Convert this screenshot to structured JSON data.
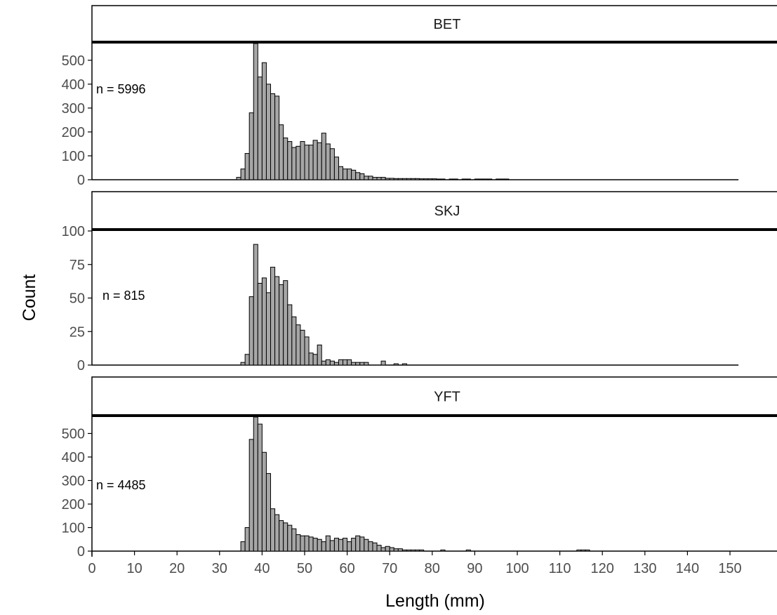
{
  "chart_data": {
    "type": "bar",
    "subtype": "histogram",
    "xlabel": "Length (mm)",
    "ylabel": "Count",
    "xlim": [
      0,
      152
    ],
    "x_ticks": [
      0,
      10,
      20,
      30,
      40,
      50,
      60,
      70,
      80,
      90,
      100,
      110,
      120,
      130,
      140,
      150
    ],
    "bin_width": 1,
    "grid": false,
    "legend": "none",
    "colors": {
      "bar_fill": "#a6a6a6",
      "bar_stroke": "#000000",
      "axis": "#000000"
    },
    "panels": [
      {
        "strip": "BET",
        "n_label": "n =  5996",
        "ylim": [
          0,
          570
        ],
        "y_ticks": [
          0,
          100,
          200,
          300,
          400,
          500
        ],
        "bin_starts": [
          34,
          35,
          36,
          37,
          38,
          39,
          40,
          41,
          42,
          43,
          44,
          45,
          46,
          47,
          48,
          49,
          50,
          51,
          52,
          53,
          54,
          55,
          56,
          57,
          58,
          59,
          60,
          61,
          62,
          63,
          64,
          65,
          66,
          67,
          68,
          69,
          70,
          71,
          72,
          73,
          74,
          75,
          76,
          77,
          78,
          79,
          80,
          81,
          82,
          84,
          85,
          87,
          88,
          90,
          91,
          92,
          93,
          95,
          96,
          97
        ],
        "counts": [
          10,
          45,
          110,
          280,
          570,
          430,
          490,
          400,
          360,
          350,
          230,
          175,
          160,
          135,
          140,
          160,
          145,
          145,
          165,
          155,
          195,
          150,
          130,
          95,
          55,
          45,
          45,
          40,
          30,
          25,
          15,
          15,
          10,
          10,
          10,
          6,
          6,
          5,
          5,
          5,
          5,
          5,
          5,
          4,
          4,
          4,
          4,
          3,
          3,
          3,
          3,
          3,
          3,
          3,
          3,
          3,
          3,
          3,
          3,
          3
        ]
      },
      {
        "strip": "SKJ",
        "n_label": "n =  815",
        "ylim": [
          0,
          100
        ],
        "y_ticks": [
          0,
          25,
          50,
          75,
          100
        ],
        "bin_starts": [
          35,
          36,
          37,
          38,
          39,
          40,
          41,
          42,
          43,
          44,
          45,
          46,
          47,
          48,
          49,
          50,
          51,
          52,
          53,
          54,
          55,
          56,
          57,
          58,
          59,
          60,
          61,
          62,
          63,
          64,
          68,
          71,
          73
        ],
        "counts": [
          2,
          8,
          51,
          90,
          61,
          65,
          54,
          73,
          66,
          60,
          63,
          45,
          36,
          30,
          26,
          21,
          9,
          8,
          15,
          3,
          4,
          3,
          2,
          4,
          4,
          4,
          2,
          2,
          2,
          2,
          3,
          1,
          1
        ]
      },
      {
        "strip": "YFT",
        "n_label": "n =  4485",
        "ylim": [
          0,
          570
        ],
        "y_ticks": [
          0,
          100,
          200,
          300,
          400,
          500
        ],
        "bin_starts": [
          35,
          36,
          37,
          38,
          39,
          40,
          41,
          42,
          43,
          44,
          45,
          46,
          47,
          48,
          49,
          50,
          51,
          52,
          53,
          54,
          55,
          56,
          57,
          58,
          59,
          60,
          61,
          62,
          63,
          64,
          65,
          66,
          67,
          68,
          69,
          70,
          71,
          72,
          73,
          74,
          75,
          76,
          77,
          82,
          88,
          114,
          115,
          116
        ],
        "counts": [
          40,
          100,
          475,
          570,
          540,
          420,
          330,
          180,
          155,
          130,
          120,
          110,
          95,
          70,
          65,
          65,
          60,
          55,
          50,
          40,
          65,
          45,
          55,
          50,
          55,
          40,
          55,
          65,
          60,
          50,
          40,
          35,
          25,
          15,
          20,
          15,
          10,
          10,
          5,
          5,
          5,
          5,
          5,
          5,
          5,
          5,
          5,
          5
        ]
      }
    ]
  }
}
